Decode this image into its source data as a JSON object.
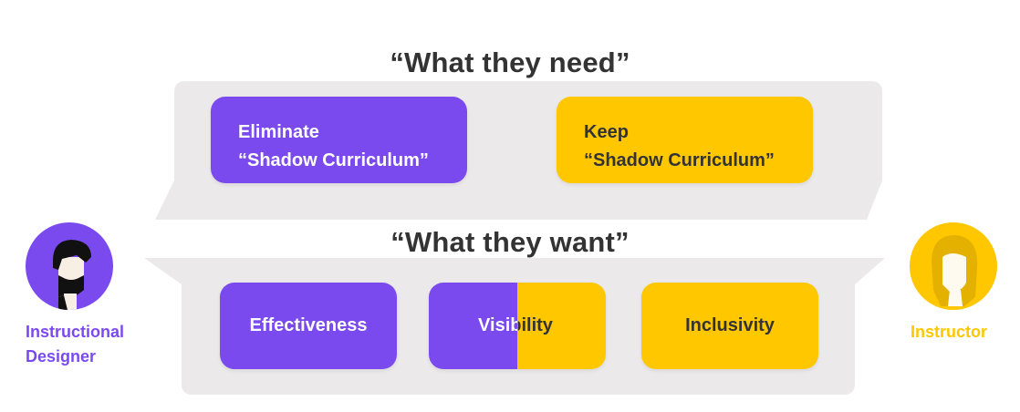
{
  "headings": {
    "need": "“What they need”",
    "want": "“What they want”"
  },
  "need": {
    "designer": [
      "Eliminate",
      "“Shadow Curriculum”"
    ],
    "instructor": [
      "Keep",
      "“Shadow Curriculum”"
    ]
  },
  "want": {
    "effectiveness": "Effectiveness",
    "visibility": "Visibility",
    "inclusivity": "Inclusivity"
  },
  "personas": {
    "designer": {
      "label": [
        "Instructional",
        "Designer"
      ],
      "color": "#7b4aef",
      "icon": "bearded-man-icon"
    },
    "instructor": {
      "label": "Instructor",
      "color": "#fec700",
      "icon": "woman-icon"
    }
  },
  "colors": {
    "designer": "#7b4aef",
    "instructor": "#fec700",
    "panel": "#ebe9ea",
    "heading": "#333333"
  }
}
